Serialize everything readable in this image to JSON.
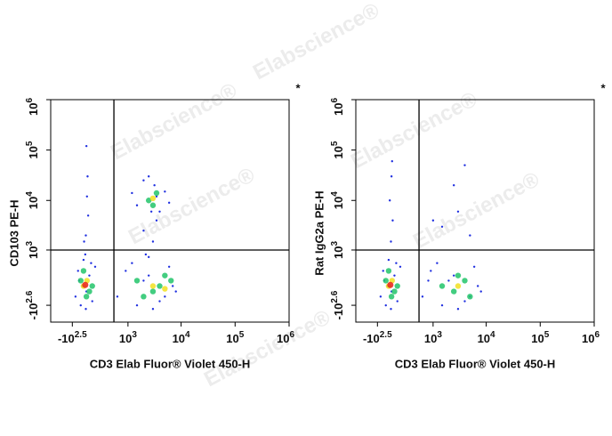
{
  "watermark": "Elabscience®",
  "chart_data": [
    {
      "type": "scatter",
      "xlabel": "CD3 Elab Fluor® Violet 450-H",
      "ylabel": "CD103 PE-H",
      "annotation": "*",
      "xlim": [
        -1000,
        1000000
      ],
      "ylim": [
        -1000,
        1000000
      ],
      "xticks": [
        {
          "value": -316.2,
          "label": "-10",
          "exponent": "2.5"
        },
        {
          "value": 1000,
          "label": "10",
          "exponent": "3"
        },
        {
          "value": 10000,
          "label": "10",
          "exponent": "4"
        },
        {
          "value": 100000,
          "label": "10",
          "exponent": "5"
        },
        {
          "value": 1000000,
          "label": "10",
          "exponent": "6"
        }
      ],
      "yticks": [
        {
          "value": -398.1,
          "label": "-10",
          "exponent": "2.6"
        },
        {
          "value": 1000,
          "label": "10",
          "exponent": "3"
        },
        {
          "value": 10000,
          "label": "10",
          "exponent": "4"
        },
        {
          "value": 100000,
          "label": "10",
          "exponent": "5"
        },
        {
          "value": 1000000,
          "label": "10",
          "exponent": "6"
        }
      ],
      "gates": {
        "x": 500,
        "y": 1000
      },
      "series": [
        {
          "color": "#1f2fe0",
          "x": [
            -250,
            -200,
            -150,
            -100,
            -50,
            0,
            50,
            100,
            -180,
            -60,
            30,
            -120,
            -60,
            -20,
            -90,
            -40,
            -70,
            -30,
            -50,
            600,
            900,
            1500,
            2500,
            4000,
            6000,
            8000,
            1200,
            3000,
            7000,
            2000,
            5000,
            2500,
            3000,
            2000,
            3500,
            2800,
            2200,
            3200,
            1500,
            5000,
            2000,
            4000,
            2500,
            3500,
            1200,
            6000
          ],
          "y": [
            -200,
            300,
            -400,
            600,
            -100,
            200,
            -300,
            400,
            100,
            -500,
            500,
            0,
            2000,
            5000,
            1500,
            12000,
            800,
            30000,
            120000,
            -200,
            300,
            -400,
            200,
            -300,
            400,
            -100,
            500,
            -500,
            0,
            100,
            -200,
            700,
            1500,
            2500,
            4000,
            6000,
            800,
            20000,
            8000,
            15000,
            25000,
            6000,
            30000,
            12000,
            14000,
            9000
          ]
        },
        {
          "color": "#22c46a",
          "x": [
            -150,
            -50,
            50,
            -100,
            0,
            1500,
            3000,
            5000,
            2000,
            4000,
            6500,
            2500,
            3500,
            3000
          ],
          "y": [
            100,
            -200,
            0,
            300,
            -100,
            100,
            -100,
            200,
            -200,
            0,
            100,
            10000,
            14000,
            8000
          ]
        },
        {
          "color": "#f2e020",
          "x": [
            -100,
            -40,
            3000,
            5000,
            3000
          ],
          "y": [
            0,
            100,
            0,
            -50,
            11000
          ]
        },
        {
          "color": "#e8201c",
          "x": [
            -70
          ],
          "y": [
            20
          ]
        }
      ]
    },
    {
      "type": "scatter",
      "xlabel": "CD3 Elab Fluor® Violet 450-H",
      "ylabel": "Rat IgG2a PE-H",
      "annotation": "*",
      "xlim": [
        -1000,
        1000000
      ],
      "ylim": [
        -1000,
        1000000
      ],
      "xticks": [
        {
          "value": -316.2,
          "label": "-10",
          "exponent": "2.5"
        },
        {
          "value": 1000,
          "label": "10",
          "exponent": "3"
        },
        {
          "value": 10000,
          "label": "10",
          "exponent": "4"
        },
        {
          "value": 100000,
          "label": "10",
          "exponent": "5"
        },
        {
          "value": 1000000,
          "label": "10",
          "exponent": "6"
        }
      ],
      "yticks": [
        {
          "value": -398.1,
          "label": "-10",
          "exponent": "2.6"
        },
        {
          "value": 1000,
          "label": "10",
          "exponent": "3"
        },
        {
          "value": 10000,
          "label": "10",
          "exponent": "4"
        },
        {
          "value": 100000,
          "label": "10",
          "exponent": "5"
        },
        {
          "value": 1000000,
          "label": "10",
          "exponent": "6"
        }
      ],
      "gates": {
        "x": 500,
        "y": 1000
      },
      "series": [
        {
          "color": "#1f2fe0",
          "x": [
            -250,
            -200,
            -150,
            -100,
            -50,
            0,
            50,
            100,
            -180,
            -60,
            30,
            -120,
            -60,
            -30,
            -80,
            -50,
            -40,
            600,
            900,
            1500,
            2500,
            4000,
            6000,
            8000,
            1200,
            3000,
            7000,
            2000,
            5000,
            800,
            1500,
            3000,
            5000,
            2500,
            4000,
            1000
          ],
          "y": [
            -200,
            300,
            -400,
            600,
            -100,
            200,
            -300,
            400,
            100,
            -500,
            500,
            0,
            1500,
            4000,
            10000,
            30000,
            60000,
            -200,
            300,
            -400,
            200,
            -300,
            400,
            -100,
            500,
            -500,
            0,
            100,
            -200,
            100,
            3000,
            6000,
            2000,
            20000,
            50000,
            4000
          ]
        },
        {
          "color": "#22c46a",
          "x": [
            -150,
            -50,
            50,
            -100,
            0,
            1500,
            2500,
            4000,
            3000,
            5000
          ],
          "y": [
            100,
            -200,
            0,
            300,
            -100,
            0,
            -100,
            100,
            200,
            -200
          ]
        },
        {
          "color": "#f2e020",
          "x": [
            -100,
            -40,
            3000
          ],
          "y": [
            0,
            100,
            0
          ]
        },
        {
          "color": "#e8201c",
          "x": [
            -70
          ],
          "y": [
            20
          ]
        }
      ]
    }
  ]
}
